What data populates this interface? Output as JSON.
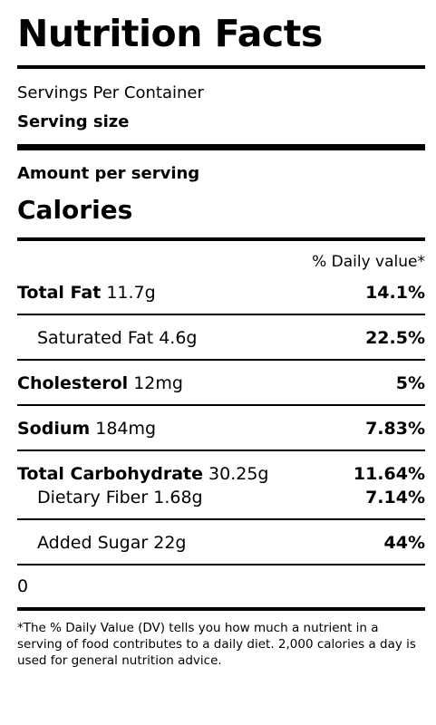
{
  "label": {
    "title": "Nutrition Facts",
    "servings_per_container": "Servings Per Container",
    "serving_size": "Serving size",
    "amount_per_serving": "Amount per serving",
    "calories": "Calories",
    "daily_value_header": "% Daily value*",
    "nutrients": {
      "total_fat": {
        "name": "Total Fat",
        "amount": "11.7g",
        "pct": "14.1%"
      },
      "saturated_fat": {
        "name": "Saturated Fat",
        "amount": "4.6g",
        "pct": "22.5%"
      },
      "cholesterol": {
        "name": "Cholesterol",
        "amount": "12mg",
        "pct": "5%"
      },
      "sodium": {
        "name": "Sodium",
        "amount": "184mg",
        "pct": "7.83%"
      },
      "total_carbohydrate": {
        "name": "Total Carbohydrate",
        "amount": "30.25g",
        "pct": "11.64%"
      },
      "dietary_fiber": {
        "name": "Dietary Fiber",
        "amount": "1.68g",
        "pct": "7.14%"
      },
      "added_sugar": {
        "name": "Added Sugar",
        "amount": "22g",
        "pct": "44%"
      }
    },
    "extra_value": "0",
    "footnote": "*The % Daily Value (DV) tells you how much a nutrient in a serving of food contributes to a daily diet. 2,000 calories a day is used for general nutrition advice."
  }
}
